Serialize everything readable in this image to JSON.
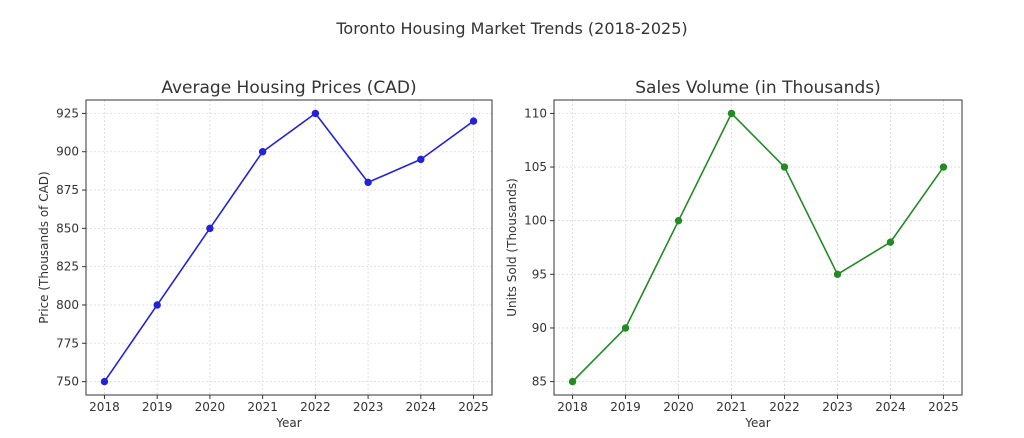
{
  "figure": {
    "suptitle": "Toronto Housing Market Trends (2018-2025)"
  },
  "chart_data": [
    {
      "type": "line",
      "title": "Average Housing Prices (CAD)",
      "xlabel": "Year",
      "ylabel": "Price (Thousands of CAD)",
      "x": [
        2018,
        2019,
        2020,
        2021,
        2022,
        2023,
        2024,
        2025
      ],
      "series": [
        {
          "values": [
            750,
            800,
            850,
            900,
            925,
            880,
            895,
            920
          ],
          "color": "#2222dd",
          "marker": "circle"
        }
      ],
      "xlim": [
        2017.65,
        2025.35
      ],
      "ylim": [
        741.25,
        933.75
      ],
      "yticks": [
        750,
        775,
        800,
        825,
        850,
        875,
        900,
        925
      ],
      "grid": true,
      "grid_style": "dashed"
    },
    {
      "type": "line",
      "title": "Sales Volume (in Thousands)",
      "xlabel": "Year",
      "ylabel": "Units Sold (Thousands)",
      "x": [
        2018,
        2019,
        2020,
        2021,
        2022,
        2023,
        2024,
        2025
      ],
      "series": [
        {
          "values": [
            85,
            90,
            100,
            110,
            105,
            95,
            98,
            105
          ],
          "color": "#228b22",
          "marker": "circle"
        }
      ],
      "xlim": [
        2017.65,
        2025.35
      ],
      "ylim": [
        83.75,
        111.25
      ],
      "yticks": [
        85,
        90,
        95,
        100,
        105,
        110
      ],
      "grid": true,
      "grid_style": "dashed"
    }
  ]
}
